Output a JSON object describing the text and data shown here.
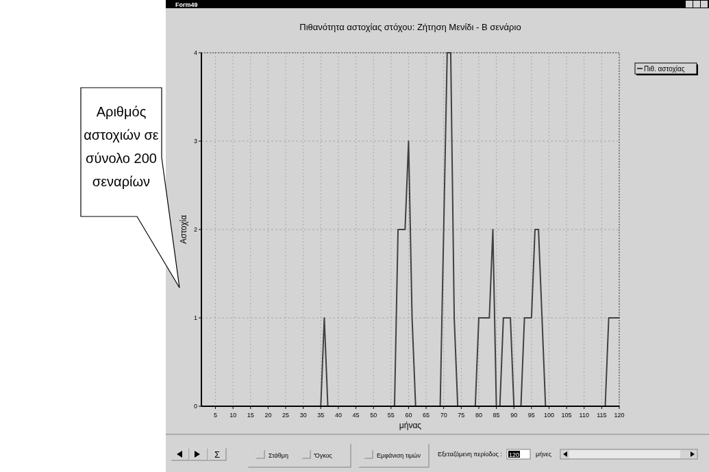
{
  "chart_data": {
    "type": "line",
    "title": "Πιθανότητα αστοχίας στόχου: Ζήτηση Μενίδι - Β σενάριο",
    "xlabel": "μήνας",
    "ylabel": "Αστοχία",
    "x": [
      1,
      2,
      3,
      4,
      5,
      6,
      7,
      8,
      9,
      10,
      11,
      12,
      13,
      14,
      15,
      16,
      17,
      18,
      19,
      20,
      21,
      22,
      23,
      24,
      25,
      26,
      27,
      28,
      29,
      30,
      31,
      32,
      33,
      34,
      35,
      36,
      37,
      38,
      39,
      40,
      41,
      42,
      43,
      44,
      45,
      46,
      47,
      48,
      49,
      50,
      51,
      52,
      53,
      54,
      55,
      56,
      57,
      58,
      59,
      60,
      61,
      62,
      63,
      64,
      65,
      66,
      67,
      68,
      69,
      70,
      71,
      72,
      73,
      74,
      75,
      76,
      77,
      78,
      79,
      80,
      81,
      82,
      83,
      84,
      85,
      86,
      87,
      88,
      89,
      90,
      91,
      92,
      93,
      94,
      95,
      96,
      97,
      98,
      99,
      100,
      101,
      102,
      103,
      104,
      105,
      106,
      107,
      108,
      109,
      110,
      111,
      112,
      113,
      114,
      115,
      116,
      117,
      118,
      119,
      120
    ],
    "series": [
      {
        "name": "Πιθ. αστοχίας",
        "color": "#404040",
        "values": [
          0,
          0,
          0,
          0,
          0,
          0,
          0,
          0,
          0,
          0,
          0,
          0,
          0,
          0,
          0,
          0,
          0,
          0,
          0,
          0,
          0,
          0,
          0,
          0,
          0,
          0,
          0,
          0,
          0,
          0,
          0,
          0,
          0,
          0,
          0,
          1,
          0,
          0,
          0,
          0,
          0,
          0,
          0,
          0,
          0,
          0,
          0,
          0,
          0,
          0,
          0,
          0,
          0,
          0,
          0,
          0,
          2,
          2,
          2,
          3,
          1,
          0,
          0,
          0,
          0,
          0,
          0,
          0,
          0,
          2,
          4,
          4,
          1,
          0,
          0,
          0,
          0,
          0,
          0,
          1,
          1,
          1,
          1,
          2,
          0,
          0,
          1,
          1,
          1,
          0,
          0,
          0,
          1,
          1,
          1,
          2,
          2,
          1,
          0,
          0,
          0,
          0,
          0,
          0,
          0,
          0,
          0,
          0,
          0,
          0,
          0,
          0,
          0,
          0,
          0,
          0,
          1,
          1,
          1,
          1
        ]
      }
    ],
    "xlim": [
      1,
      120
    ],
    "xticks": [
      5,
      10,
      15,
      20,
      25,
      30,
      35,
      40,
      45,
      50,
      55,
      60,
      65,
      70,
      75,
      80,
      85,
      90,
      95,
      100,
      105,
      110,
      115,
      120
    ],
    "ylim": [
      0,
      4
    ],
    "yticks": [
      0,
      1,
      2,
      3,
      4
    ],
    "grid": true,
    "legend": "top right",
    "marker": "none",
    "line_style": "solid",
    "annotations": [
      "Αριθμός αστοχιών σε σύνολο 200 σεναρίων",
      "Form49",
      "Σ",
      "Στάθμη",
      "'Όγκος",
      "Εμφάνιση τιμών",
      "Εξεταζόμενη περίοδος :",
      "120",
      "μήνες"
    ]
  }
}
